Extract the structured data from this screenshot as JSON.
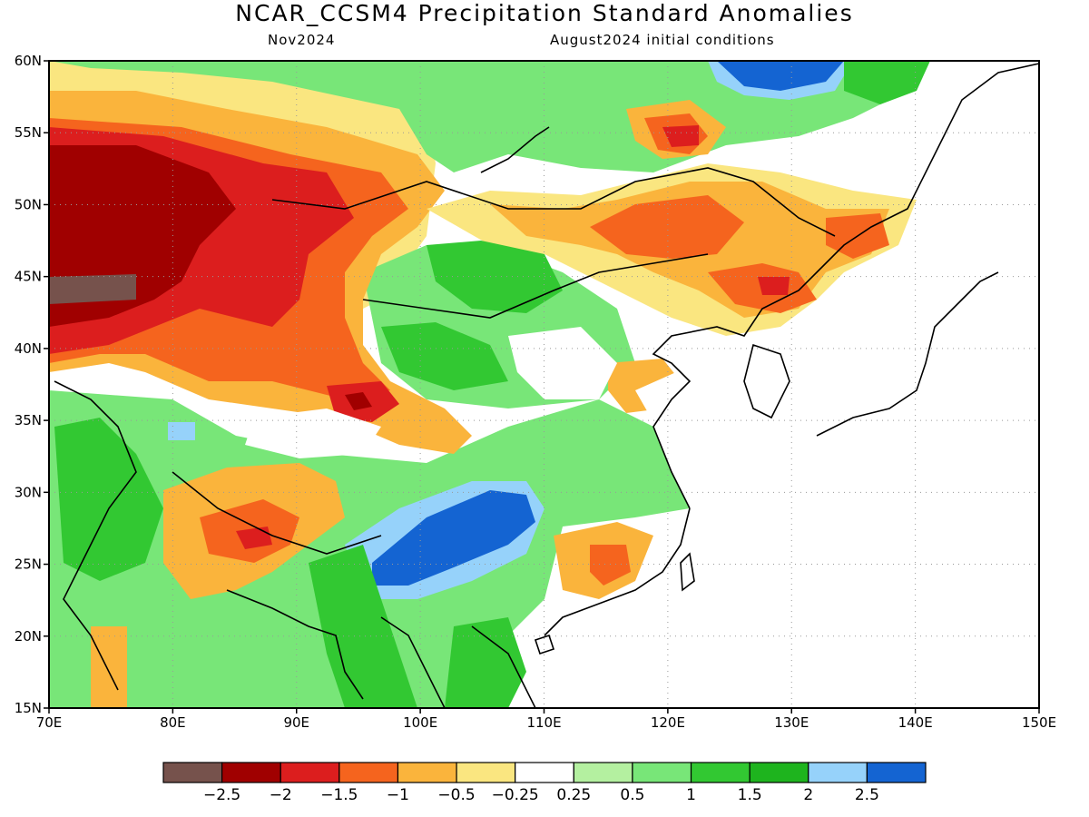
{
  "title": "NCAR_CCSM4 Precipitation Standard Anomalies",
  "subtitle_left": "Nov2024",
  "subtitle_right": "August2024 initial conditions",
  "map": {
    "lon_range": [
      70,
      150
    ],
    "lat_range": [
      15,
      60
    ],
    "lon_ticks": [
      "70E",
      "80E",
      "90E",
      "100E",
      "110E",
      "120E",
      "130E",
      "140E",
      "150E"
    ],
    "lat_ticks": [
      "60N",
      "55N",
      "50N",
      "45N",
      "40N",
      "35N",
      "30N",
      "25N",
      "20N",
      "15N"
    ],
    "grid": true
  },
  "colorbar": {
    "labels": [
      "-2.5",
      "-2",
      "-1.5",
      "-1",
      "-0.5",
      "-0.25",
      "0.25",
      "0.5",
      "1",
      "1.5",
      "2",
      "2.5"
    ],
    "colors": [
      "#76524c",
      "#a00000",
      "#dc1e1e",
      "#f5641e",
      "#fab43c",
      "#fae680",
      "#ffffff",
      "#b4f0a0",
      "#78e678",
      "#32c832",
      "#1eb41e",
      "#96d2fa",
      "#1464d2"
    ]
  }
}
